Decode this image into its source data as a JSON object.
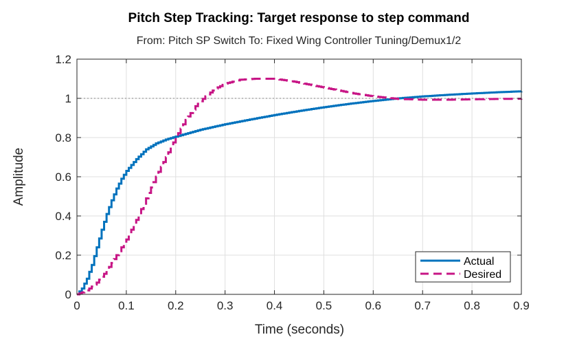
{
  "colors": {
    "actual": "#0072BD",
    "desired": "#C71585",
    "grid": "#DFDFDF",
    "reference": "#808080",
    "axis": "#262626"
  },
  "chart_data": {
    "type": "line",
    "title": "Pitch Step Tracking: Target response to step command",
    "subtitle": "From: Pitch SP Switch  To: Fixed Wing Controller Tuning/Demux1/2",
    "xlabel": "Time (seconds)",
    "ylabel": "Amplitude",
    "xlim": [
      0,
      0.9
    ],
    "ylim": [
      0,
      1.2
    ],
    "xticks": [
      "0",
      "0.1",
      "0.2",
      "0.3",
      "0.4",
      "0.5",
      "0.6",
      "0.7",
      "0.8",
      "0.9"
    ],
    "yticks": [
      "0",
      "0.2",
      "0.4",
      "0.6",
      "0.8",
      "1",
      "1.2"
    ],
    "grid": true,
    "reference_line": 1,
    "legend_position": "bottom-right",
    "series": [
      {
        "name": "Actual",
        "style": "solid-stairs",
        "x": [
          0,
          0.01,
          0.02,
          0.03,
          0.04,
          0.05,
          0.06,
          0.07,
          0.08,
          0.09,
          0.1,
          0.12,
          0.14,
          0.16,
          0.18,
          0.2,
          0.25,
          0.3,
          0.35,
          0.4,
          0.45,
          0.5,
          0.55,
          0.6,
          0.65,
          0.7,
          0.75,
          0.8,
          0.85,
          0.9
        ],
        "values": [
          0,
          0.03,
          0.08,
          0.15,
          0.24,
          0.33,
          0.41,
          0.48,
          0.54,
          0.59,
          0.63,
          0.69,
          0.74,
          0.77,
          0.79,
          0.805,
          0.84,
          0.868,
          0.892,
          0.915,
          0.936,
          0.955,
          0.972,
          0.987,
          1.0,
          1.01,
          1.018,
          1.025,
          1.031,
          1.036
        ]
      },
      {
        "name": "Desired",
        "style": "dashed-stairs",
        "x": [
          0,
          0.02,
          0.04,
          0.06,
          0.08,
          0.1,
          0.12,
          0.14,
          0.16,
          0.18,
          0.2,
          0.22,
          0.24,
          0.26,
          0.28,
          0.3,
          0.33,
          0.36,
          0.4,
          0.44,
          0.48,
          0.52,
          0.56,
          0.6,
          0.65,
          0.7,
          0.75,
          0.8,
          0.85,
          0.9
        ],
        "values": [
          0,
          0.02,
          0.06,
          0.12,
          0.2,
          0.28,
          0.38,
          0.49,
          0.6,
          0.7,
          0.8,
          0.89,
          0.96,
          1.01,
          1.05,
          1.075,
          1.095,
          1.1,
          1.1,
          1.085,
          1.065,
          1.045,
          1.025,
          1.01,
          0.997,
          0.993,
          0.993,
          0.995,
          0.997,
          0.998
        ]
      }
    ]
  }
}
